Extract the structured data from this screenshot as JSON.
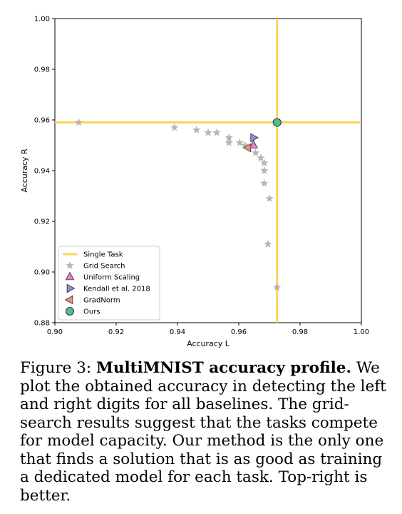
{
  "chart_data": {
    "type": "scatter",
    "xlabel": "Accuracy L",
    "ylabel": "Accuracy R",
    "xlim": [
      0.9,
      1.0
    ],
    "ylim": [
      0.88,
      1.0
    ],
    "x_ticks": [
      "0.90",
      "0.92",
      "0.94",
      "0.96",
      "0.98",
      "1.00"
    ],
    "y_ticks": [
      "0.88",
      "0.90",
      "0.92",
      "0.94",
      "0.96",
      "0.98",
      "1.00"
    ],
    "grid": false,
    "legend_position": "bottom-left",
    "single_task": {
      "name": "Single Task",
      "x": 0.9725,
      "y": 0.959,
      "color": "#f7d558"
    },
    "series": [
      {
        "name": "Grid Search",
        "marker": "star",
        "color": "#b5b5b5",
        "points": [
          [
            0.9078,
            0.959
          ],
          [
            0.939,
            0.957
          ],
          [
            0.9462,
            0.956
          ],
          [
            0.95,
            0.955
          ],
          [
            0.9528,
            0.955
          ],
          [
            0.9568,
            0.953
          ],
          [
            0.9568,
            0.951
          ],
          [
            0.9603,
            0.951
          ],
          [
            0.962,
            0.95
          ],
          [
            0.9655,
            0.947
          ],
          [
            0.9672,
            0.945
          ],
          [
            0.9683,
            0.943
          ],
          [
            0.9683,
            0.94
          ],
          [
            0.9683,
            0.935
          ],
          [
            0.97,
            0.929
          ],
          [
            0.9695,
            0.911
          ],
          [
            0.9725,
            0.894
          ]
        ]
      },
      {
        "name": "Uniform Scaling",
        "marker": "triangle-up",
        "color": "#e57fc8",
        "points": [
          [
            0.9648,
            0.95
          ]
        ]
      },
      {
        "name": "Kendall et al. 2018",
        "marker": "triangle-right",
        "color": "#8c8cd9",
        "points": [
          [
            0.9648,
            0.953
          ]
        ]
      },
      {
        "name": "GradNorm",
        "marker": "triangle-left",
        "color": "#f09070",
        "points": [
          [
            0.963,
            0.949
          ]
        ]
      },
      {
        "name": "Ours",
        "marker": "circle",
        "color": "#4fbf8f",
        "points": [
          [
            0.9725,
            0.959
          ]
        ]
      }
    ]
  },
  "caption": {
    "label": "Figure 3:",
    "title": "MultiMNIST accuracy profile.",
    "body": "We plot the obtained accuracy in detecting the left and right digits for all baselines. The grid-search results suggest that the tasks compete for model capacity. Our method is the only one that finds a solution that is as good as training a dedicated model for each task. Top-right is better."
  }
}
